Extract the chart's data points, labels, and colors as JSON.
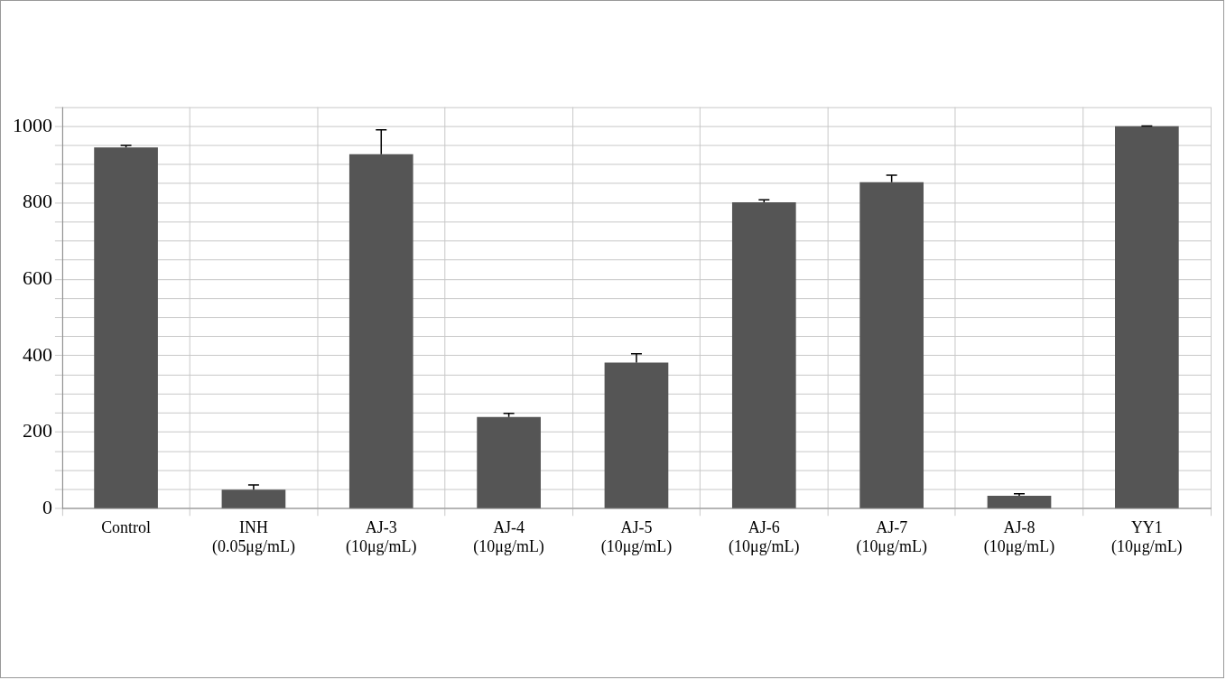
{
  "chart_data": {
    "type": "bar",
    "categories": [
      "Control",
      "INH (0.05μg/mL)",
      "AJ-3 (10μg/mL)",
      "AJ-4 (10μg/mL)",
      "AJ-5 (10μg/mL)",
      "AJ-6 (10μg/mL)",
      "AJ-7 (10μg/mL)",
      "AJ-8 (10μg/mL)",
      "YY1 (10μg/mL)"
    ],
    "values": [
      945,
      50,
      927,
      240,
      382,
      801,
      854,
      34,
      1000
    ],
    "errors": [
      [
        945,
        950
      ],
      [
        50,
        62
      ],
      [
        927,
        991
      ],
      [
        240,
        249
      ],
      [
        382,
        405
      ],
      [
        801,
        808
      ],
      [
        854,
        872
      ],
      [
        34,
        39
      ],
      [
        1000,
        1001
      ]
    ],
    "color": "#555555",
    "ylim": [
      0,
      1050
    ],
    "yticks": [
      0,
      {
        "value": 50,
        "label": null
      },
      {
        "value": 100,
        "label": null
      },
      {
        "value": 150,
        "label": null
      },
      200,
      {
        "value": 250,
        "label": null
      },
      {
        "value": 300,
        "label": null
      },
      {
        "value": 350,
        "label": null
      },
      400,
      {
        "value": 450,
        "label": null
      },
      {
        "value": 500,
        "label": null
      },
      {
        "value": 550,
        "label": null
      },
      600,
      {
        "value": 650,
        "label": null
      },
      {
        "value": 700,
        "label": null
      },
      {
        "value": 750,
        "label": null
      },
      800,
      {
        "value": 850,
        "label": null
      },
      {
        "value": 900,
        "label": null
      },
      {
        "value": 950,
        "label": null
      },
      1000,
      {
        "value": 1050,
        "label": null
      }
    ],
    "grid": true,
    "legend": false
  }
}
